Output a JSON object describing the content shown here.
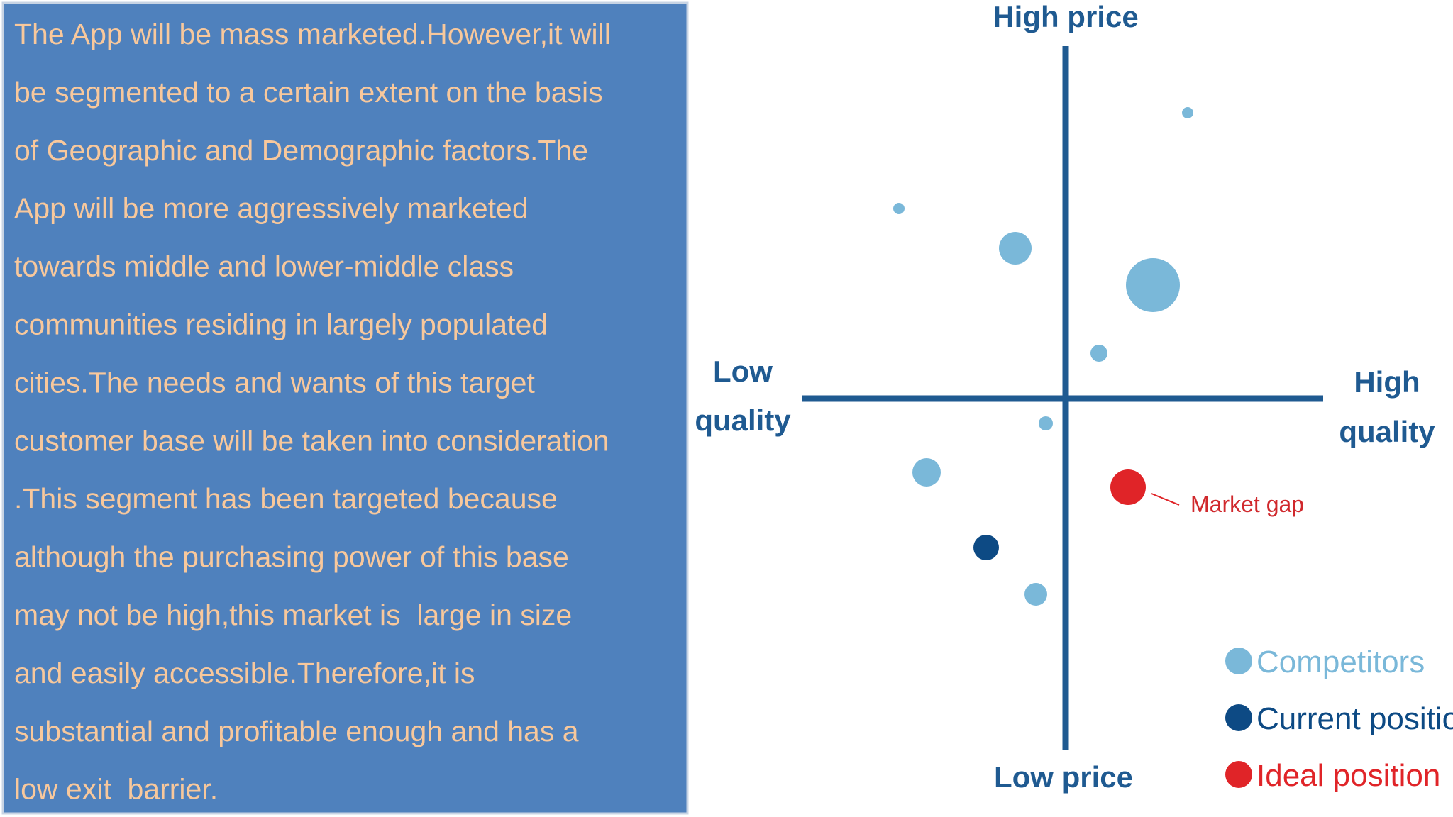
{
  "text_box": {
    "lines": [
      "The App will be mass marketed.However,it will",
      "be segmented to a certain extent on the basis",
      "of Geographic and Demographic factors.The",
      "App will be more aggressively marketed",
      "towards middle and lower-middle class",
      "communities residing in largely populated",
      "cities.The needs and wants of this target",
      "customer base will be taken into consideration",
      ".This segment has been targeted because",
      "although the purchasing power of this base",
      "may not be high,this market is  large in size",
      "and easily accessible.Therefore,it is",
      "substantial and profitable enough and has a",
      "low exit  barrier."
    ]
  },
  "map": {
    "top_label": "High price",
    "bottom_label": "Low price",
    "left_label": [
      "Low",
      "quality"
    ],
    "right_label": [
      "High",
      "quality"
    ],
    "annotation": "Market gap",
    "legend": [
      "Competitors",
      "Current position",
      "Ideal position"
    ]
  }
}
